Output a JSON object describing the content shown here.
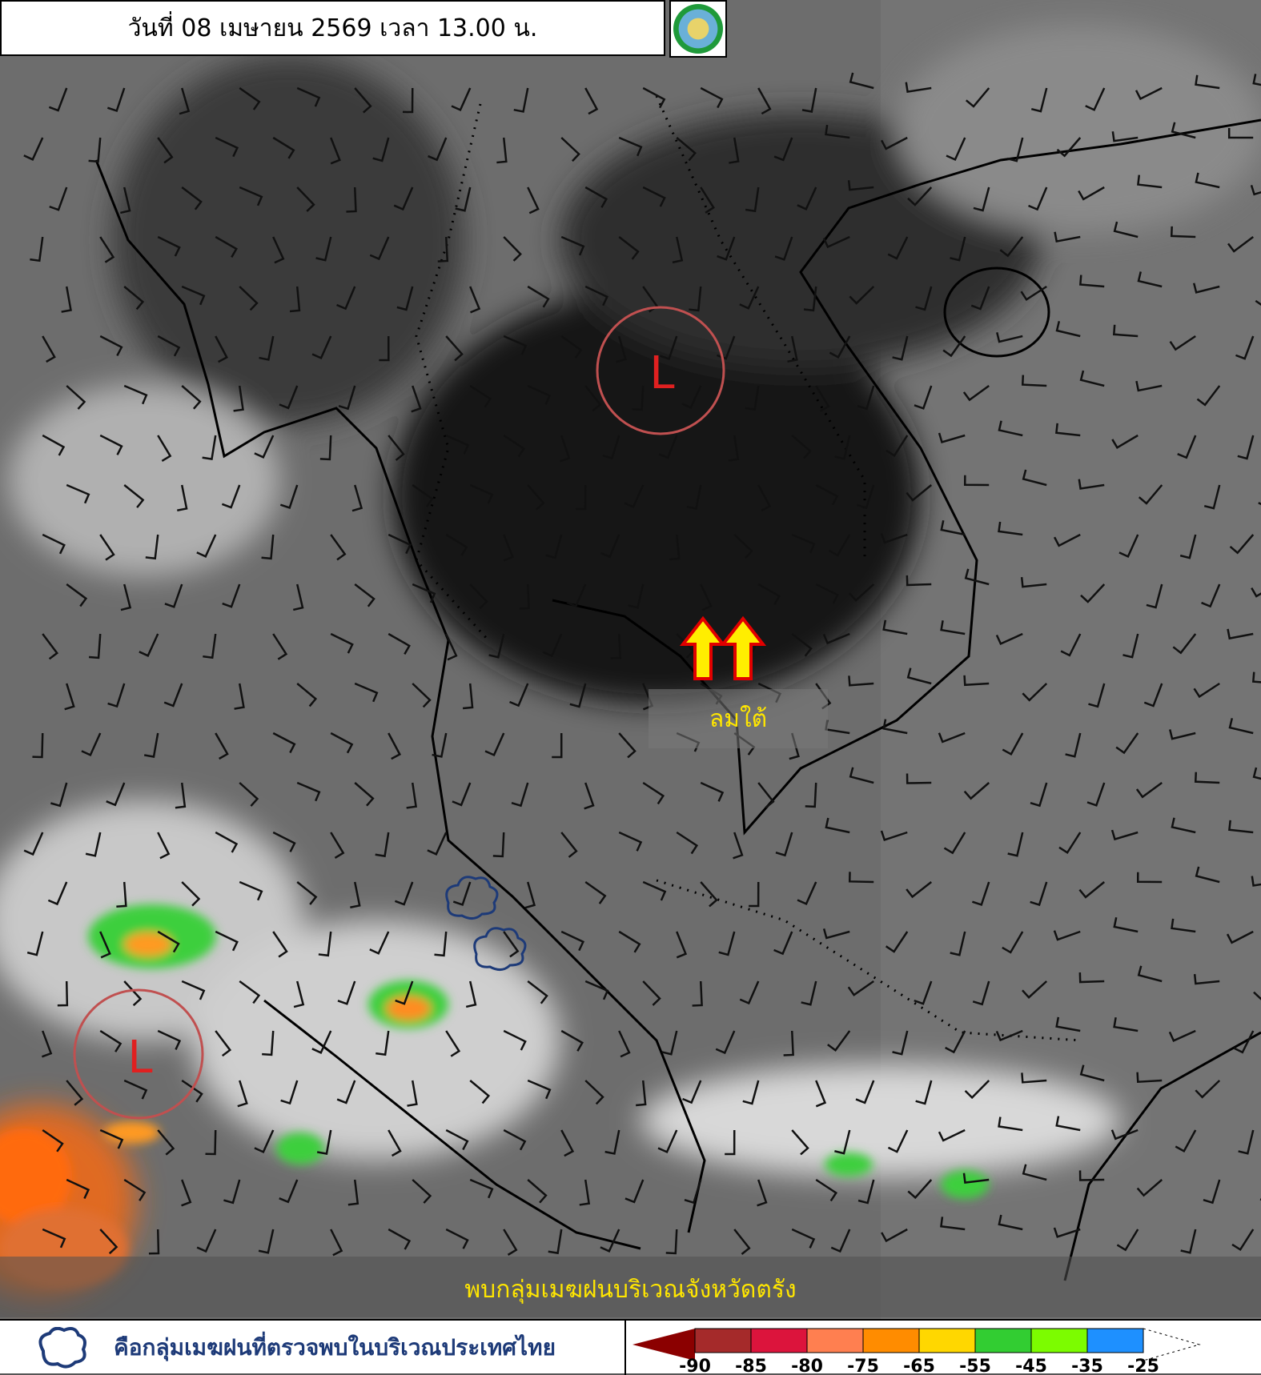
{
  "header": {
    "title": "วันที่ 08 เมษายน 2569 เวลา 13.00 น.",
    "logo_icon": "tmd-logo"
  },
  "map": {
    "low_pressure_label": "L",
    "low_pressure_color": "#e02020",
    "wind_annotation": "ลมใต้",
    "wind_arrow_color": "#ffee00",
    "rain_note": "พบกลุ่มเมฆฝนบริเวณจังหวัดตรัง"
  },
  "footer": {
    "legend_text": "คือกลุ่มเมฆฝนที่ตรวจพบในบริเวณประเทศไทย",
    "legend_icon": "cloud-outline-icon",
    "scale": {
      "colors": [
        "#8b0000",
        "#a52a2a",
        "#dc143c",
        "#ff7f50",
        "#ff8c00",
        "#ffd700",
        "#32cd32",
        "#7cfc00",
        "#1e90ff"
      ],
      "labels": [
        "-90",
        "-85",
        "-80",
        "-75",
        "-65",
        "-55",
        "-45",
        "-35",
        "-25"
      ]
    }
  }
}
